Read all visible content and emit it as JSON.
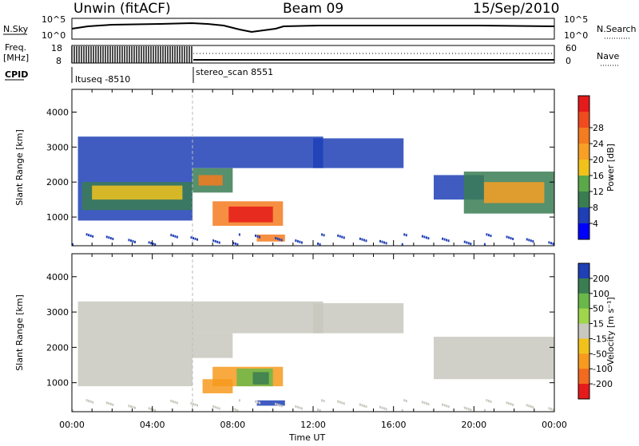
{
  "header": {
    "station": "Unwin (fitACF)",
    "beam": "Beam 09",
    "date": "15/Sep/2010"
  },
  "strip_panels": {
    "nsky_label": "N.Sky",
    "nsky_ticks": [
      "10^5",
      "10^0"
    ],
    "nsearch_label": "N.Search",
    "nsearch_ticks": [
      "10^5",
      "10^0"
    ],
    "freq_label_line1": "Freq.",
    "freq_label_line2": "[MHz]",
    "freq_ticks": [
      "18",
      "8"
    ],
    "nave_label": "Nave",
    "nave_ticks": [
      "60",
      "0"
    ],
    "cpid_label": "CPID",
    "cpid_modes": [
      {
        "name": "ltuseq -8510",
        "start_hour": 0,
        "end_hour": 6
      },
      {
        "name": "stereo_scan 8551",
        "start_hour": 6,
        "end_hour": 24
      }
    ]
  },
  "time_axis": {
    "label": "Time UT",
    "ticks": [
      "00:00",
      "04:00",
      "08:00",
      "12:00",
      "16:00",
      "20:00",
      "00:00"
    ]
  },
  "chart_data": [
    {
      "type": "heatmap",
      "name": "power",
      "ylabel": "Slant Range [km]",
      "yticks": [
        "1000",
        "2000",
        "3000",
        "4000"
      ],
      "ylim": [
        180,
        4650
      ],
      "xlim": [
        0,
        24
      ],
      "colorbar_label": "Power [dB]",
      "colorbar_ticks": [
        "4",
        "8",
        "12",
        "16",
        "20",
        "24",
        "28"
      ],
      "colorbar_colors": [
        "#0000ff",
        "#1f3fb6",
        "#3a7d52",
        "#5aa84a",
        "#f2c21c",
        "#f7a025",
        "#f47b20",
        "#ef4b1e",
        "#e51a1a"
      ],
      "regions": [
        {
          "t0": 0.3,
          "t1": 6.0,
          "r0": 900,
          "r1": 3300,
          "color": "#1f3fb6"
        },
        {
          "t0": 0.5,
          "t1": 6.0,
          "r0": 1200,
          "r1": 2000,
          "color": "#3a7d52"
        },
        {
          "t0": 1.0,
          "t1": 5.5,
          "r0": 1500,
          "r1": 1900,
          "color": "#f2c21c"
        },
        {
          "t0": 6.0,
          "t1": 12.5,
          "r0": 2400,
          "r1": 3300,
          "color": "#1f3fb6"
        },
        {
          "t0": 6.0,
          "t1": 8.0,
          "r0": 1700,
          "r1": 2400,
          "color": "#3a7d52"
        },
        {
          "t0": 6.3,
          "t1": 7.5,
          "r0": 1900,
          "r1": 2200,
          "color": "#f47b20"
        },
        {
          "t0": 7.0,
          "t1": 10.5,
          "r0": 750,
          "r1": 1450,
          "color": "#f47b20"
        },
        {
          "t0": 7.8,
          "t1": 10.0,
          "r0": 850,
          "r1": 1300,
          "color": "#e51a1a"
        },
        {
          "t0": 9.2,
          "t1": 10.6,
          "r0": 300,
          "r1": 500,
          "color": "#f47b20"
        },
        {
          "t0": 12.0,
          "t1": 16.5,
          "r0": 2400,
          "r1": 3250,
          "color": "#1f3fb6"
        },
        {
          "t0": 18.0,
          "t1": 20.5,
          "r0": 1500,
          "r1": 2200,
          "color": "#1f3fb6"
        },
        {
          "t0": 19.5,
          "t1": 24.0,
          "r0": 1100,
          "r1": 2300,
          "color": "#3a7d52"
        },
        {
          "t0": 20.5,
          "t1": 23.5,
          "r0": 1400,
          "r1": 2000,
          "color": "#f7a025"
        }
      ]
    },
    {
      "type": "heatmap",
      "name": "velocity",
      "ylabel": "Slant Range [km]",
      "yticks": [
        "1000",
        "2000",
        "3000",
        "4000"
      ],
      "ylim": [
        180,
        4650
      ],
      "xlim": [
        0,
        24
      ],
      "colorbar_label": "Velocity [m s⁻¹]",
      "colorbar_ticks": [
        "200",
        "100",
        "50",
        "15",
        "-15",
        "-50",
        "-100",
        "-200"
      ],
      "colorbar_colors": [
        "#1f3fb6",
        "#3a7d52",
        "#6ab84a",
        "#a0d64a",
        "#c8c8be",
        "#f2c21c",
        "#f79a1f",
        "#f26a1f",
        "#e51a1a"
      ],
      "regions": [
        {
          "t0": 0.3,
          "t1": 6.0,
          "r0": 900,
          "r1": 3300,
          "color": "#c8c8be"
        },
        {
          "t0": 6.0,
          "t1": 12.5,
          "r0": 2400,
          "r1": 3300,
          "color": "#c8c8be"
        },
        {
          "t0": 6.0,
          "t1": 8.0,
          "r0": 1700,
          "r1": 2400,
          "color": "#c8c8be"
        },
        {
          "t0": 6.5,
          "t1": 8.0,
          "r0": 700,
          "r1": 1100,
          "color": "#f79a1f"
        },
        {
          "t0": 7.0,
          "t1": 10.5,
          "r0": 900,
          "r1": 1450,
          "color": "#f79a1f"
        },
        {
          "t0": 8.2,
          "t1": 10.0,
          "r0": 900,
          "r1": 1400,
          "color": "#6ab84a"
        },
        {
          "t0": 9.0,
          "t1": 9.8,
          "r0": 950,
          "r1": 1300,
          "color": "#3a7d52"
        },
        {
          "t0": 9.2,
          "t1": 10.6,
          "r0": 350,
          "r1": 500,
          "color": "#1f3fb6"
        },
        {
          "t0": 12.0,
          "t1": 16.5,
          "r0": 2400,
          "r1": 3250,
          "color": "#c8c8be"
        },
        {
          "t0": 18.0,
          "t1": 24.0,
          "r0": 1100,
          "r1": 2300,
          "color": "#c8c8be"
        }
      ]
    }
  ]
}
